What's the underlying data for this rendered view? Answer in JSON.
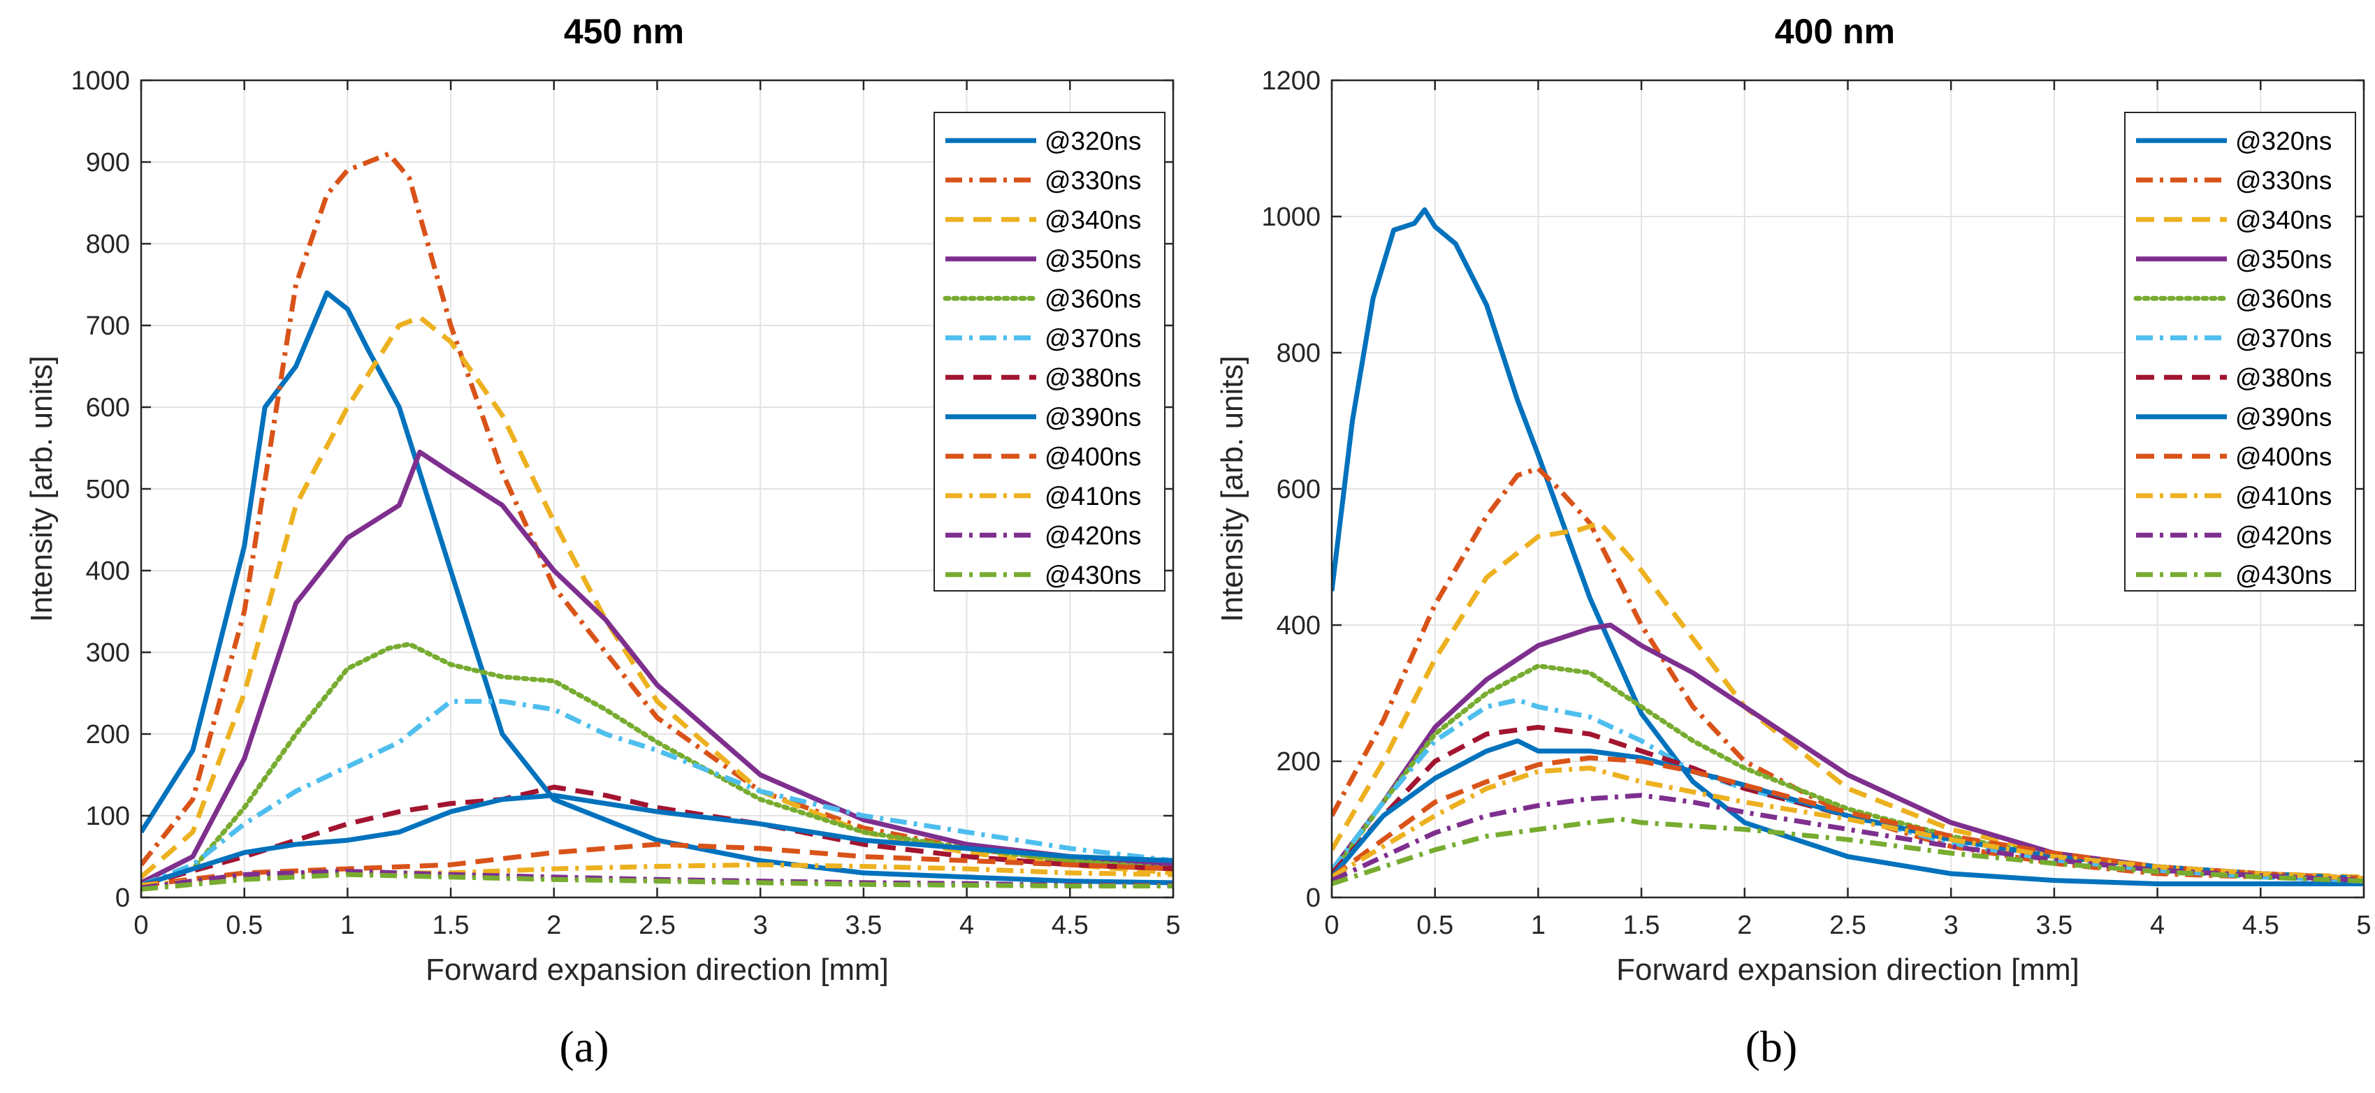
{
  "figure": {
    "captions": [
      "(a)",
      "(b)"
    ]
  },
  "styles": {
    "@320ns": {
      "color": "#0072BD",
      "dash": "solid"
    },
    "@330ns": {
      "color": "#D95319",
      "dash": "dashdot"
    },
    "@340ns": {
      "color": "#EDB120",
      "dash": "dashed"
    },
    "@350ns": {
      "color": "#7E2F8E",
      "dash": "solid"
    },
    "@360ns": {
      "color": "#77AC30",
      "dash": "dotted"
    },
    "@370ns": {
      "color": "#4DBEEE",
      "dash": "dashdot"
    },
    "@380ns": {
      "color": "#A2142F",
      "dash": "dashed"
    },
    "@390ns": {
      "color": "#0072BD",
      "dash": "solid"
    },
    "@400ns": {
      "color": "#D95319",
      "dash": "dashed"
    },
    "@410ns": {
      "color": "#EDB120",
      "dash": "dashdot"
    },
    "@420ns": {
      "color": "#7E2F8E",
      "dash": "dashdot"
    },
    "@430ns": {
      "color": "#77AC30",
      "dash": "dashdot"
    }
  },
  "chart_data": [
    {
      "type": "line",
      "title": "450 nm",
      "xlabel": "Forward expansion direction [mm]",
      "ylabel": "Intensity [arb. units]",
      "xlim": [
        0,
        5
      ],
      "ylim": [
        0,
        1000
      ],
      "xticks": [
        0,
        0.5,
        1,
        1.5,
        2,
        2.5,
        3,
        3.5,
        4,
        4.5,
        5
      ],
      "xtick_labels": [
        "0",
        "0.5",
        "1",
        "1.5",
        "2",
        "2.5",
        "3",
        "3.5",
        "4",
        "4.5",
        "5"
      ],
      "yticks": [
        0,
        100,
        200,
        300,
        400,
        500,
        600,
        700,
        800,
        900,
        1000
      ],
      "ytick_labels": [
        "0",
        "100",
        "200",
        "300",
        "400",
        "500",
        "600",
        "700",
        "800",
        "900",
        "1000"
      ],
      "grid": true,
      "legend_position": "top-right",
      "series": [
        {
          "name": "@320ns",
          "x": [
            0,
            0.25,
            0.5,
            0.6,
            0.75,
            0.9,
            1.0,
            1.1,
            1.25,
            1.5,
            1.75,
            2.0,
            2.5,
            3.0,
            3.5,
            4.0,
            4.5,
            5.0
          ],
          "y": [
            80,
            180,
            430,
            600,
            650,
            740,
            720,
            670,
            600,
            400,
            200,
            120,
            70,
            45,
            30,
            25,
            20,
            18
          ]
        },
        {
          "name": "@330ns",
          "x": [
            0,
            0.25,
            0.5,
            0.75,
            0.9,
            1.0,
            1.1,
            1.2,
            1.3,
            1.5,
            1.75,
            2.0,
            2.5,
            3.0,
            3.5,
            4.0,
            4.5,
            5.0
          ],
          "y": [
            40,
            120,
            350,
            750,
            860,
            890,
            900,
            910,
            880,
            700,
            520,
            380,
            220,
            130,
            85,
            60,
            45,
            35
          ]
        },
        {
          "name": "@340ns",
          "x": [
            0,
            0.25,
            0.5,
            0.75,
            1.0,
            1.25,
            1.35,
            1.5,
            1.75,
            2.0,
            2.25,
            2.5,
            3.0,
            3.5,
            4.0,
            4.5,
            5.0
          ],
          "y": [
            25,
            80,
            250,
            480,
            600,
            700,
            710,
            680,
            590,
            460,
            340,
            240,
            130,
            80,
            55,
            40,
            30
          ]
        },
        {
          "name": "@350ns",
          "x": [
            0,
            0.25,
            0.5,
            0.75,
            1.0,
            1.25,
            1.35,
            1.5,
            1.75,
            2.0,
            2.25,
            2.5,
            3.0,
            3.5,
            4.0,
            4.5,
            5.0
          ],
          "y": [
            18,
            50,
            170,
            360,
            440,
            480,
            545,
            520,
            480,
            400,
            340,
            260,
            150,
            95,
            65,
            50,
            40
          ]
        },
        {
          "name": "@360ns",
          "x": [
            0,
            0.25,
            0.5,
            0.75,
            1.0,
            1.2,
            1.3,
            1.5,
            1.75,
            2.0,
            2.25,
            2.5,
            3.0,
            3.5,
            4.0,
            4.5,
            5.0
          ],
          "y": [
            15,
            35,
            110,
            200,
            280,
            305,
            310,
            285,
            270,
            265,
            230,
            190,
            120,
            80,
            60,
            45,
            35
          ]
        },
        {
          "name": "@370ns",
          "x": [
            0,
            0.25,
            0.5,
            0.75,
            1.0,
            1.25,
            1.5,
            1.75,
            2.0,
            2.25,
            2.5,
            3.0,
            3.5,
            4.0,
            4.5,
            5.0
          ],
          "y": [
            15,
            40,
            90,
            130,
            160,
            190,
            240,
            240,
            230,
            200,
            180,
            130,
            100,
            80,
            60,
            45
          ]
        },
        {
          "name": "@380ns",
          "x": [
            0,
            0.5,
            0.75,
            1.0,
            1.25,
            1.5,
            1.75,
            2.0,
            2.25,
            2.5,
            3.0,
            3.5,
            4.0,
            4.5,
            5.0
          ],
          "y": [
            15,
            50,
            70,
            90,
            105,
            115,
            120,
            135,
            125,
            110,
            90,
            65,
            50,
            40,
            35
          ]
        },
        {
          "name": "@390ns",
          "x": [
            0,
            0.5,
            0.75,
            1.0,
            1.25,
            1.5,
            1.75,
            2.0,
            2.25,
            2.5,
            3.0,
            3.5,
            4.0,
            4.5,
            5.0
          ],
          "y": [
            15,
            55,
            65,
            70,
            80,
            105,
            120,
            125,
            115,
            105,
            90,
            70,
            60,
            50,
            45
          ]
        },
        {
          "name": "@400ns",
          "x": [
            0,
            0.5,
            1.0,
            1.5,
            2.0,
            2.25,
            2.5,
            3.0,
            3.5,
            4.0,
            4.5,
            5.0
          ],
          "y": [
            15,
            30,
            35,
            40,
            55,
            60,
            65,
            60,
            50,
            45,
            40,
            35
          ]
        },
        {
          "name": "@410ns",
          "x": [
            0,
            0.5,
            1.0,
            1.5,
            2.0,
            2.5,
            3.0,
            3.5,
            4.0,
            4.5,
            5.0
          ],
          "y": [
            15,
            25,
            30,
            30,
            35,
            38,
            40,
            38,
            35,
            30,
            28
          ]
        },
        {
          "name": "@420ns",
          "x": [
            0,
            0.5,
            1.0,
            1.5,
            2.0,
            2.5,
            3.0,
            3.5,
            4.0,
            4.5,
            5.0
          ],
          "y": [
            12,
            28,
            32,
            28,
            25,
            22,
            20,
            18,
            17,
            15,
            15
          ]
        },
        {
          "name": "@430ns",
          "x": [
            0,
            0.5,
            1.0,
            1.5,
            2.0,
            2.5,
            3.0,
            3.5,
            4.0,
            4.5,
            5.0
          ],
          "y": [
            10,
            22,
            28,
            25,
            22,
            20,
            18,
            16,
            15,
            14,
            14
          ]
        }
      ]
    },
    {
      "type": "line",
      "title": "400 nm",
      "xlabel": "Forward expansion direction [mm]",
      "ylabel": "Intensity [arb. units]",
      "xlim": [
        0,
        5
      ],
      "ylim": [
        0,
        1200
      ],
      "xticks": [
        0,
        0.5,
        1,
        1.5,
        2,
        2.5,
        3,
        3.5,
        4,
        4.5,
        5
      ],
      "xtick_labels": [
        "0",
        "0.5",
        "1",
        "1.5",
        "2",
        "2.5",
        "3",
        "3.5",
        "4",
        "4.5",
        "5"
      ],
      "yticks": [
        0,
        200,
        400,
        600,
        800,
        1000,
        1200
      ],
      "ytick_labels": [
        "0",
        "200",
        "400",
        "600",
        "800",
        "1000",
        "1200"
      ],
      "grid": true,
      "legend_position": "top-right",
      "series": [
        {
          "name": "@320ns",
          "x": [
            0,
            0.1,
            0.2,
            0.3,
            0.4,
            0.45,
            0.5,
            0.6,
            0.75,
            0.9,
            1.0,
            1.25,
            1.5,
            1.75,
            2.0,
            2.5,
            3.0,
            3.5,
            4.0,
            4.5,
            5.0
          ],
          "y": [
            450,
            700,
            880,
            980,
            990,
            1010,
            985,
            960,
            870,
            730,
            650,
            440,
            270,
            170,
            110,
            60,
            35,
            25,
            20,
            20,
            20
          ]
        },
        {
          "name": "@330ns",
          "x": [
            0,
            0.25,
            0.5,
            0.75,
            0.9,
            1.0,
            1.1,
            1.25,
            1.5,
            1.75,
            2.0,
            2.5,
            3.0,
            3.5,
            4.0,
            4.5,
            5.0
          ],
          "y": [
            120,
            260,
            430,
            560,
            620,
            630,
            600,
            550,
            400,
            280,
            200,
            120,
            75,
            50,
            35,
            30,
            25
          ]
        },
        {
          "name": "@340ns",
          "x": [
            0,
            0.25,
            0.5,
            0.75,
            1.0,
            1.2,
            1.3,
            1.5,
            1.75,
            2.0,
            2.5,
            3.0,
            3.5,
            4.0,
            4.5,
            5.0
          ],
          "y": [
            70,
            200,
            350,
            470,
            530,
            540,
            550,
            480,
            380,
            280,
            160,
            100,
            65,
            45,
            35,
            30
          ]
        },
        {
          "name": "@350ns",
          "x": [
            0,
            0.25,
            0.5,
            0.75,
            1.0,
            1.25,
            1.35,
            1.5,
            1.75,
            2.0,
            2.5,
            3.0,
            3.5,
            4.0,
            4.5,
            5.0
          ],
          "y": [
            40,
            140,
            250,
            320,
            370,
            395,
            400,
            370,
            330,
            280,
            180,
            110,
            65,
            45,
            35,
            28
          ]
        },
        {
          "name": "@360ns",
          "x": [
            0,
            0.25,
            0.5,
            0.75,
            1.0,
            1.25,
            1.5,
            1.75,
            2.0,
            2.5,
            3.0,
            3.5,
            4.0,
            4.5,
            5.0
          ],
          "y": [
            35,
            140,
            240,
            300,
            340,
            330,
            280,
            230,
            190,
            130,
            90,
            60,
            45,
            35,
            28
          ]
        },
        {
          "name": "@370ns",
          "x": [
            0,
            0.25,
            0.5,
            0.75,
            0.9,
            1.0,
            1.25,
            1.5,
            1.75,
            2.0,
            2.5,
            3.0,
            3.5,
            4.0,
            4.5,
            5.0
          ],
          "y": [
            40,
            140,
            230,
            280,
            290,
            280,
            265,
            230,
            185,
            160,
            120,
            80,
            55,
            40,
            30,
            25
          ]
        },
        {
          "name": "@380ns",
          "x": [
            0,
            0.25,
            0.5,
            0.75,
            1.0,
            1.25,
            1.5,
            1.75,
            2.0,
            2.5,
            3.0,
            3.5,
            4.0,
            4.5,
            5.0
          ],
          "y": [
            35,
            120,
            200,
            240,
            250,
            240,
            215,
            190,
            160,
            120,
            85,
            60,
            45,
            35,
            28
          ]
        },
        {
          "name": "@390ns",
          "x": [
            0,
            0.25,
            0.5,
            0.75,
            0.9,
            1.0,
            1.25,
            1.5,
            1.75,
            2.0,
            2.5,
            3.0,
            3.5,
            4.0,
            4.5,
            5.0
          ],
          "y": [
            30,
            120,
            175,
            215,
            230,
            215,
            215,
            205,
            185,
            165,
            120,
            85,
            60,
            45,
            35,
            28
          ]
        },
        {
          "name": "@400ns",
          "x": [
            0,
            0.25,
            0.5,
            0.75,
            1.0,
            1.25,
            1.5,
            1.75,
            2.0,
            2.5,
            3.0,
            3.5,
            4.0,
            4.5,
            5.0
          ],
          "y": [
            30,
            85,
            140,
            170,
            195,
            205,
            200,
            185,
            165,
            125,
            90,
            65,
            45,
            35,
            28
          ]
        },
        {
          "name": "@410ns",
          "x": [
            0,
            0.25,
            0.5,
            0.75,
            1.0,
            1.25,
            1.5,
            1.75,
            2.0,
            2.5,
            3.0,
            3.5,
            4.0,
            4.5,
            5.0
          ],
          "y": [
            30,
            75,
            120,
            160,
            185,
            190,
            170,
            155,
            140,
            115,
            85,
            60,
            45,
            35,
            28
          ]
        },
        {
          "name": "@420ns",
          "x": [
            0,
            0.25,
            0.5,
            0.75,
            1.0,
            1.25,
            1.5,
            1.75,
            2.0,
            2.5,
            3.0,
            3.5,
            4.0,
            4.5,
            5.0
          ],
          "y": [
            25,
            60,
            95,
            120,
            135,
            145,
            150,
            140,
            125,
            100,
            75,
            55,
            40,
            32,
            25
          ]
        },
        {
          "name": "@430ns",
          "x": [
            0,
            0.25,
            0.5,
            0.75,
            1.0,
            1.25,
            1.4,
            1.5,
            1.75,
            2.0,
            2.5,
            3.0,
            3.5,
            4.0,
            4.5,
            5.0
          ],
          "y": [
            20,
            45,
            70,
            90,
            100,
            110,
            115,
            110,
            105,
            100,
            85,
            65,
            50,
            38,
            30,
            24
          ]
        }
      ]
    }
  ]
}
